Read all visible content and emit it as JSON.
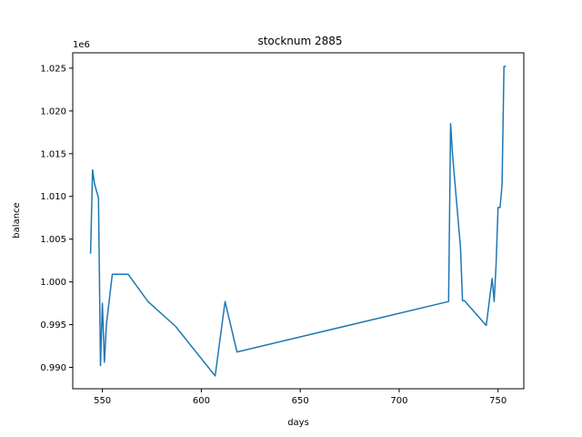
{
  "chart_data": {
    "type": "line",
    "title": "stocknum 2885",
    "xlabel": "days",
    "ylabel": "balance",
    "y_offset_text": "1e6",
    "xlim": [
      535,
      763
    ],
    "ylim": [
      987500,
      1026800
    ],
    "x_ticks": [
      550,
      600,
      650,
      700,
      750
    ],
    "y_ticks": [
      0.99,
      0.995,
      1.0,
      1.005,
      1.01,
      1.015,
      1.02,
      1.025
    ],
    "grid": false,
    "legend": "none",
    "series": [
      {
        "color": "#1f77b4",
        "x": [
          544,
          545,
          546,
          548,
          549,
          550,
          551,
          552,
          555,
          559,
          563,
          573,
          587,
          607,
          612,
          618,
          725,
          726,
          727,
          731,
          732,
          733,
          744,
          747,
          748,
          749,
          750,
          751,
          752,
          753,
          754
        ],
        "y": [
          1003300,
          1013100,
          1011500,
          1009800,
          990200,
          997500,
          990600,
          995000,
          1000900,
          1000900,
          1000900,
          997700,
          994800,
          989000,
          997700,
          991800,
          997700,
          1018500,
          1014800,
          1004000,
          997800,
          997800,
          994900,
          1000400,
          997700,
          1002000,
          1008700,
          1008700,
          1011400,
          1025200,
          1025200
        ]
      }
    ]
  }
}
